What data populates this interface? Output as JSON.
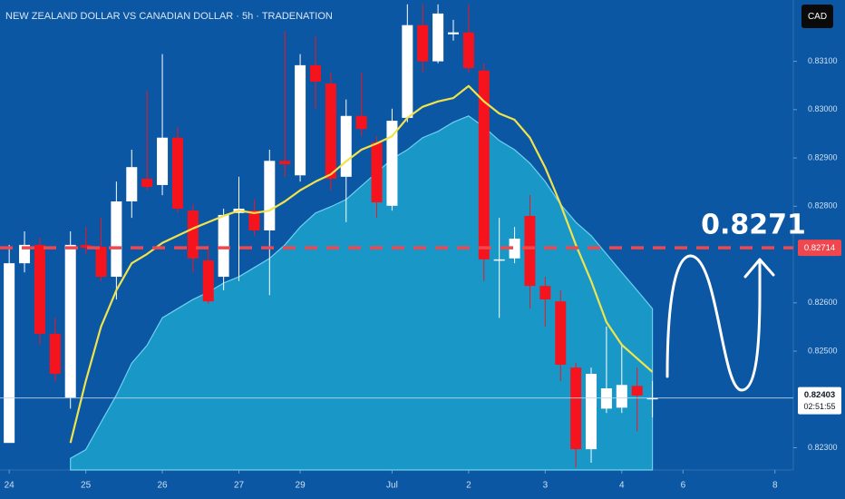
{
  "chart_data": {
    "type": "candlestick",
    "title": "NEW ZEALAND DOLLAR VS CANADIAN DOLLAR · 5h · TRADENATION",
    "currency": "CAD",
    "x": [
      0,
      1,
      2,
      3,
      4,
      5,
      6,
      7,
      8,
      9,
      10,
      11,
      12,
      13,
      14,
      15,
      16,
      17,
      18,
      19,
      20,
      21,
      22,
      23,
      24,
      25,
      26,
      27,
      28,
      29,
      30,
      31,
      32,
      33,
      34,
      35,
      36,
      37,
      38,
      39,
      40,
      41,
      42
    ],
    "open": [
      0.8231,
      0.82682,
      0.8272,
      0.82536,
      0.82404,
      0.8272,
      0.82716,
      0.82654,
      0.8281,
      0.82857,
      0.82844,
      0.82942,
      0.82791,
      0.82688,
      0.82654,
      0.82786,
      0.82791,
      0.8275,
      0.82894,
      0.82864,
      0.83092,
      0.83054,
      0.82861,
      0.82987,
      0.82932,
      0.82801,
      0.82983,
      0.83175,
      0.831,
      0.83156,
      0.8316,
      0.83081,
      0.82688,
      0.82692,
      0.8278,
      0.82635,
      0.82603,
      0.82466,
      0.82297,
      0.82381,
      0.82383,
      0.82428,
      0.82403
    ],
    "high": [
      0.8272,
      0.82748,
      0.82735,
      0.82569,
      0.82748,
      0.82757,
      0.82776,
      0.82851,
      0.82917,
      0.83039,
      0.83115,
      0.82964,
      0.82804,
      0.8272,
      0.82795,
      0.82861,
      0.82814,
      0.82917,
      0.83162,
      0.83115,
      0.83152,
      0.83077,
      0.83021,
      0.83077,
      0.82945,
      0.83002,
      0.83218,
      0.83218,
      0.83218,
      0.83186,
      0.83218,
      0.83096,
      0.82776,
      0.82757,
      0.82823,
      0.82654,
      0.82626,
      0.82476,
      0.82466,
      0.82551,
      0.82513,
      0.82466,
      0.82438
    ],
    "low": [
      0.8231,
      0.82663,
      0.82513,
      0.82438,
      0.82381,
      0.82701,
      0.82645,
      0.82607,
      0.82776,
      0.82833,
      0.82823,
      0.82786,
      0.82663,
      0.82598,
      0.82626,
      0.82645,
      0.82739,
      0.82616,
      0.82861,
      0.82851,
      0.83002,
      0.82833,
      0.82767,
      0.82945,
      0.82776,
      0.82791,
      0.82974,
      0.83077,
      0.83096,
      0.83143,
      0.83077,
      0.82645,
      0.82569,
      0.82682,
      0.82588,
      0.82551,
      0.82438,
      0.82259,
      0.82269,
      0.82372,
      0.82372,
      0.82334,
      0.82363
    ],
    "close": [
      0.82682,
      0.8272,
      0.82536,
      0.82453,
      0.8272,
      0.82714,
      0.82654,
      0.8281,
      0.82881,
      0.8284,
      0.82942,
      0.82795,
      0.82692,
      0.82603,
      0.82782,
      0.82795,
      0.8275,
      0.82894,
      0.82887,
      0.83092,
      0.83058,
      0.82857,
      0.82987,
      0.8296,
      0.82808,
      0.82977,
      0.83175,
      0.831,
      0.83199,
      0.8316,
      0.83086,
      0.8269,
      0.8269,
      0.82733,
      0.82635,
      0.82607,
      0.82472,
      0.82297,
      0.82453,
      0.82423,
      0.8243,
      0.82408,
      0.82403
    ],
    "up_color": "#ffffff",
    "down_color": "#f5141e",
    "ema_fast": {
      "color": "#f2e34c",
      "values": [
        null,
        null,
        null,
        null,
        0.8231,
        0.82438,
        0.82551,
        0.82626,
        0.82682,
        0.82701,
        0.82724,
        0.82739,
        0.82754,
        0.82767,
        0.8278,
        0.82791,
        0.82786,
        0.82791,
        0.8281,
        0.82833,
        0.82851,
        0.82866,
        0.82893,
        0.82917,
        0.8293,
        0.82945,
        0.82983,
        0.83006,
        0.83017,
        0.83024,
        0.83049,
        0.83017,
        0.82992,
        0.82979,
        0.82942,
        0.8288,
        0.82804,
        0.8272,
        0.82645,
        0.8256,
        0.82513,
        0.82485,
        0.82457
      ]
    },
    "ma_slow": {
      "color": "#1ca3cf",
      "values": [
        null,
        null,
        null,
        null,
        0.82278,
        0.82296,
        0.82353,
        0.82409,
        0.82475,
        0.82512,
        0.82569,
        0.82588,
        0.82607,
        0.82622,
        0.82641,
        0.82654,
        0.82673,
        0.82692,
        0.8272,
        0.82757,
        0.82786,
        0.82799,
        0.82814,
        0.82842,
        0.8287,
        0.82898,
        0.82917,
        0.82942,
        0.82955,
        0.82974,
        0.82987,
        0.82964,
        0.82936,
        0.82917,
        0.82889,
        0.82851,
        0.82804,
        0.82767,
        0.82739,
        0.82701,
        0.82663,
        0.82626,
        0.82588
      ]
    },
    "level": {
      "value": 0.82714,
      "color": "#f0474f"
    },
    "annotation": 0.8271,
    "last_price": {
      "value": 0.82403,
      "countdown": "02:51:55"
    },
    "xlim": [
      -0.6,
      51.2
    ],
    "ylim": [
      0.82254,
      0.83227
    ],
    "xticks": [
      {
        "value": 0,
        "label": "24"
      },
      {
        "value": 5,
        "label": "25"
      },
      {
        "value": 10,
        "label": "26"
      },
      {
        "value": 15,
        "label": "27"
      },
      {
        "value": 19,
        "label": "29"
      },
      {
        "value": 25,
        "label": "Jul"
      },
      {
        "value": 30,
        "label": "2"
      },
      {
        "value": 35,
        "label": "3"
      },
      {
        "value": 40,
        "label": "4"
      },
      {
        "value": 44,
        "label": "6"
      },
      {
        "value": 50,
        "label": "8"
      }
    ],
    "yticks": [
      {
        "value": 0.823,
        "label": "0.82300"
      },
      {
        "value": 0.825,
        "label": "0.82500"
      },
      {
        "value": 0.826,
        "label": "0.82600"
      },
      {
        "value": 0.828,
        "label": "0.82800"
      },
      {
        "value": 0.829,
        "label": "0.82900"
      },
      {
        "value": 0.83,
        "label": "0.83000"
      },
      {
        "value": 0.831,
        "label": "0.83100"
      }
    ],
    "grid": false
  }
}
